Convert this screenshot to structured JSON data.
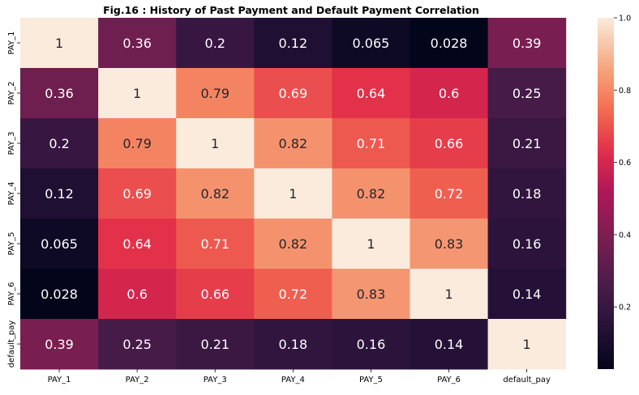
{
  "chart_data": {
    "type": "heatmap",
    "title": "Fig.16 : History of Past Payment and Default Payment Correlation",
    "xlabels": [
      "PAY_1",
      "PAY_2",
      "PAY_3",
      "PAY_4",
      "PAY_5",
      "PAY_6",
      "default_pay"
    ],
    "ylabels": [
      "PAY_1",
      "PAY_2",
      "PAY_3",
      "PAY_4",
      "PAY_5",
      "PAY_6",
      "default_pay"
    ],
    "values": [
      [
        1,
        0.36,
        0.2,
        0.12,
        0.065,
        0.028,
        0.39
      ],
      [
        0.36,
        1,
        0.79,
        0.69,
        0.64,
        0.6,
        0.25
      ],
      [
        0.2,
        0.79,
        1,
        0.82,
        0.71,
        0.66,
        0.21
      ],
      [
        0.12,
        0.69,
        0.82,
        1,
        0.82,
        0.72,
        0.18
      ],
      [
        0.065,
        0.64,
        0.71,
        0.82,
        1,
        0.83,
        0.16
      ],
      [
        0.028,
        0.6,
        0.66,
        0.72,
        0.83,
        1,
        0.14
      ],
      [
        0.39,
        0.25,
        0.21,
        0.18,
        0.16,
        0.14,
        1
      ]
    ],
    "annotations": [
      [
        "1",
        "0.36",
        "0.2",
        "0.12",
        "0.065",
        "0.028",
        "0.39"
      ],
      [
        "0.36",
        "1",
        "0.79",
        "0.69",
        "0.64",
        "0.6",
        "0.25"
      ],
      [
        "0.2",
        "0.79",
        "1",
        "0.82",
        "0.71",
        "0.66",
        "0.21"
      ],
      [
        "0.12",
        "0.69",
        "0.82",
        "1",
        "0.82",
        "0.72",
        "0.18"
      ],
      [
        "0.065",
        "0.64",
        "0.71",
        "0.82",
        "1",
        "0.83",
        "0.16"
      ],
      [
        "0.028",
        "0.6",
        "0.66",
        "0.72",
        "0.83",
        "1",
        "0.14"
      ],
      [
        "0.39",
        "0.25",
        "0.21",
        "0.18",
        "0.16",
        "0.14",
        "1"
      ]
    ],
    "colormap": "rocket",
    "vmin": 0.028,
    "vmax": 1.0,
    "colorbar_ticks": [
      "0.2",
      "0.4",
      "0.6",
      "0.8",
      "1.0"
    ],
    "colorbar_tick_values": [
      0.2,
      0.4,
      0.6,
      0.8,
      1.0
    ],
    "legend": "right"
  }
}
